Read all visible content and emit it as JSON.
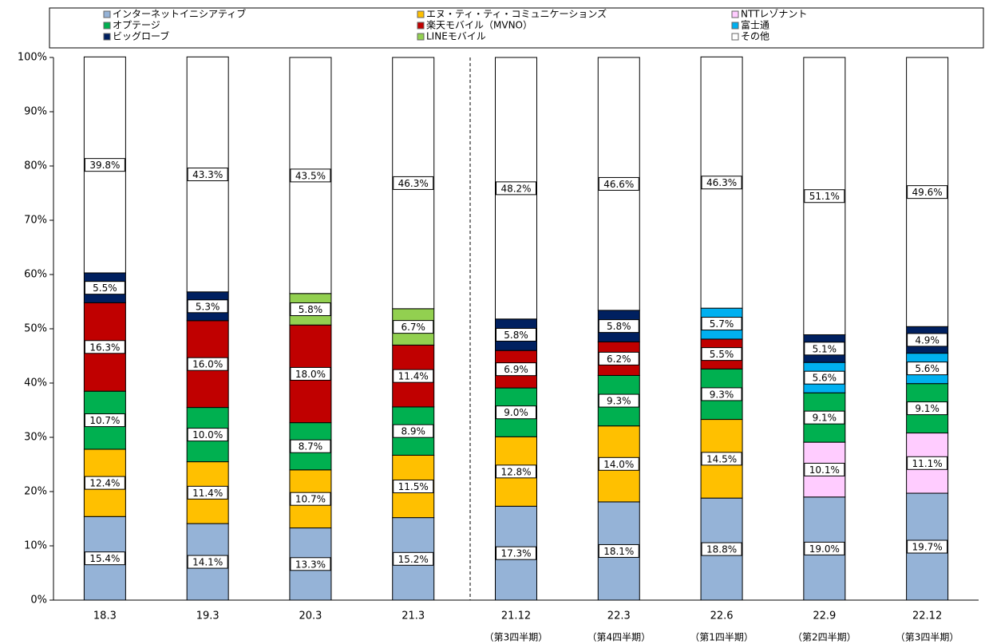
{
  "chart_data": {
    "type": "stacked_bar",
    "categories": [
      "18.3",
      "19.3",
      "20.3",
      "21.3",
      "21.12",
      "22.3",
      "22.6",
      "22.9",
      "22.12"
    ],
    "category_sublabels": [
      null,
      null,
      null,
      null,
      "（第3四半期）",
      "（第4四半期）",
      "（第1四半期）",
      "（第2四半期）",
      "（第3四半期）"
    ],
    "ylim": [
      0,
      100
    ],
    "yticks": [
      {
        "value": 0,
        "label": "0%"
      },
      {
        "value": 10,
        "label": "10%"
      },
      {
        "value": 20,
        "label": "20%"
      },
      {
        "value": 30,
        "label": "30%"
      },
      {
        "value": 40,
        "label": "40%"
      },
      {
        "value": 50,
        "label": "50%"
      },
      {
        "value": 60,
        "label": "60%"
      },
      {
        "value": 70,
        "label": "70%"
      },
      {
        "value": 80,
        "label": "80%"
      },
      {
        "value": 90,
        "label": "90%"
      },
      {
        "value": 100,
        "label": "100%"
      }
    ],
    "legend": "top",
    "series": [
      {
        "name": "インターネットイニシアティブ",
        "color": "#95b3d7",
        "values": [
          15.4,
          14.1,
          13.3,
          15.2,
          17.3,
          18.1,
          18.8,
          19.0,
          19.7
        ],
        "value_labels": [
          "15.4%",
          "14.1%",
          "13.3%",
          "15.2%",
          "17.3%",
          "18.1%",
          "18.8%",
          "19.0%",
          "19.7%"
        ]
      },
      {
        "name": "エヌ・ティ・ティ・コミュニケーションズ",
        "color": "#ffc000",
        "values": [
          12.4,
          11.4,
          10.7,
          11.5,
          12.8,
          14.0,
          14.5,
          null,
          null
        ],
        "value_labels": [
          "12.4%",
          "11.4%",
          "10.7%",
          "11.5%",
          "12.8%",
          "14.0%",
          "14.5%",
          null,
          null
        ]
      },
      {
        "name": "NTTレゾナント",
        "color": "#ffccff",
        "values": [
          null,
          null,
          null,
          null,
          null,
          null,
          null,
          10.1,
          11.1
        ],
        "value_labels": [
          null,
          null,
          null,
          null,
          null,
          null,
          null,
          "10.1%",
          "11.1%"
        ]
      },
      {
        "name": "オプテージ",
        "color": "#00b050",
        "values": [
          10.7,
          10.0,
          8.7,
          8.9,
          9.0,
          9.3,
          9.3,
          9.1,
          9.1
        ],
        "value_labels": [
          "10.7%",
          "10.0%",
          "8.7%",
          "8.9%",
          "9.0%",
          "9.3%",
          "9.3%",
          "9.1%",
          "9.1%"
        ]
      },
      {
        "name": "楽天モバイル（MVNO）",
        "color": "#c00000",
        "values": [
          16.3,
          16.0,
          18.0,
          11.4,
          6.9,
          6.2,
          5.5,
          null,
          null
        ],
        "value_labels": [
          "16.3%",
          "16.0%",
          "18.0%",
          "11.4%",
          "6.9%",
          "6.2%",
          "5.5%",
          null,
          null
        ]
      },
      {
        "name": "富士通",
        "color": "#00b0f0",
        "values": [
          null,
          null,
          null,
          null,
          null,
          null,
          5.7,
          5.6,
          5.6
        ],
        "value_labels": [
          null,
          null,
          null,
          null,
          null,
          null,
          "5.7%",
          "5.6%",
          "5.6%"
        ]
      },
      {
        "name": "ビッグローブ",
        "color": "#002060",
        "values": [
          5.5,
          5.3,
          null,
          null,
          5.8,
          5.8,
          null,
          5.1,
          4.9
        ],
        "value_labels": [
          "5.5%",
          "5.3%",
          null,
          null,
          "5.8%",
          "5.8%",
          null,
          "5.1%",
          "4.9%"
        ]
      },
      {
        "name": "LINEモバイル",
        "color": "#92d050",
        "values": [
          null,
          null,
          5.8,
          6.7,
          null,
          null,
          null,
          null,
          null
        ],
        "value_labels": [
          null,
          null,
          "5.8%",
          "6.7%",
          null,
          null,
          null,
          null,
          null
        ]
      },
      {
        "name": "その他",
        "color": "#ffffff",
        "values": [
          39.8,
          43.3,
          43.5,
          46.3,
          48.2,
          46.6,
          46.3,
          51.1,
          49.6
        ],
        "value_labels": [
          "39.8%",
          "43.3%",
          "43.5%",
          "46.3%",
          "48.2%",
          "46.6%",
          "46.3%",
          "51.1%",
          "49.6%"
        ]
      }
    ]
  }
}
